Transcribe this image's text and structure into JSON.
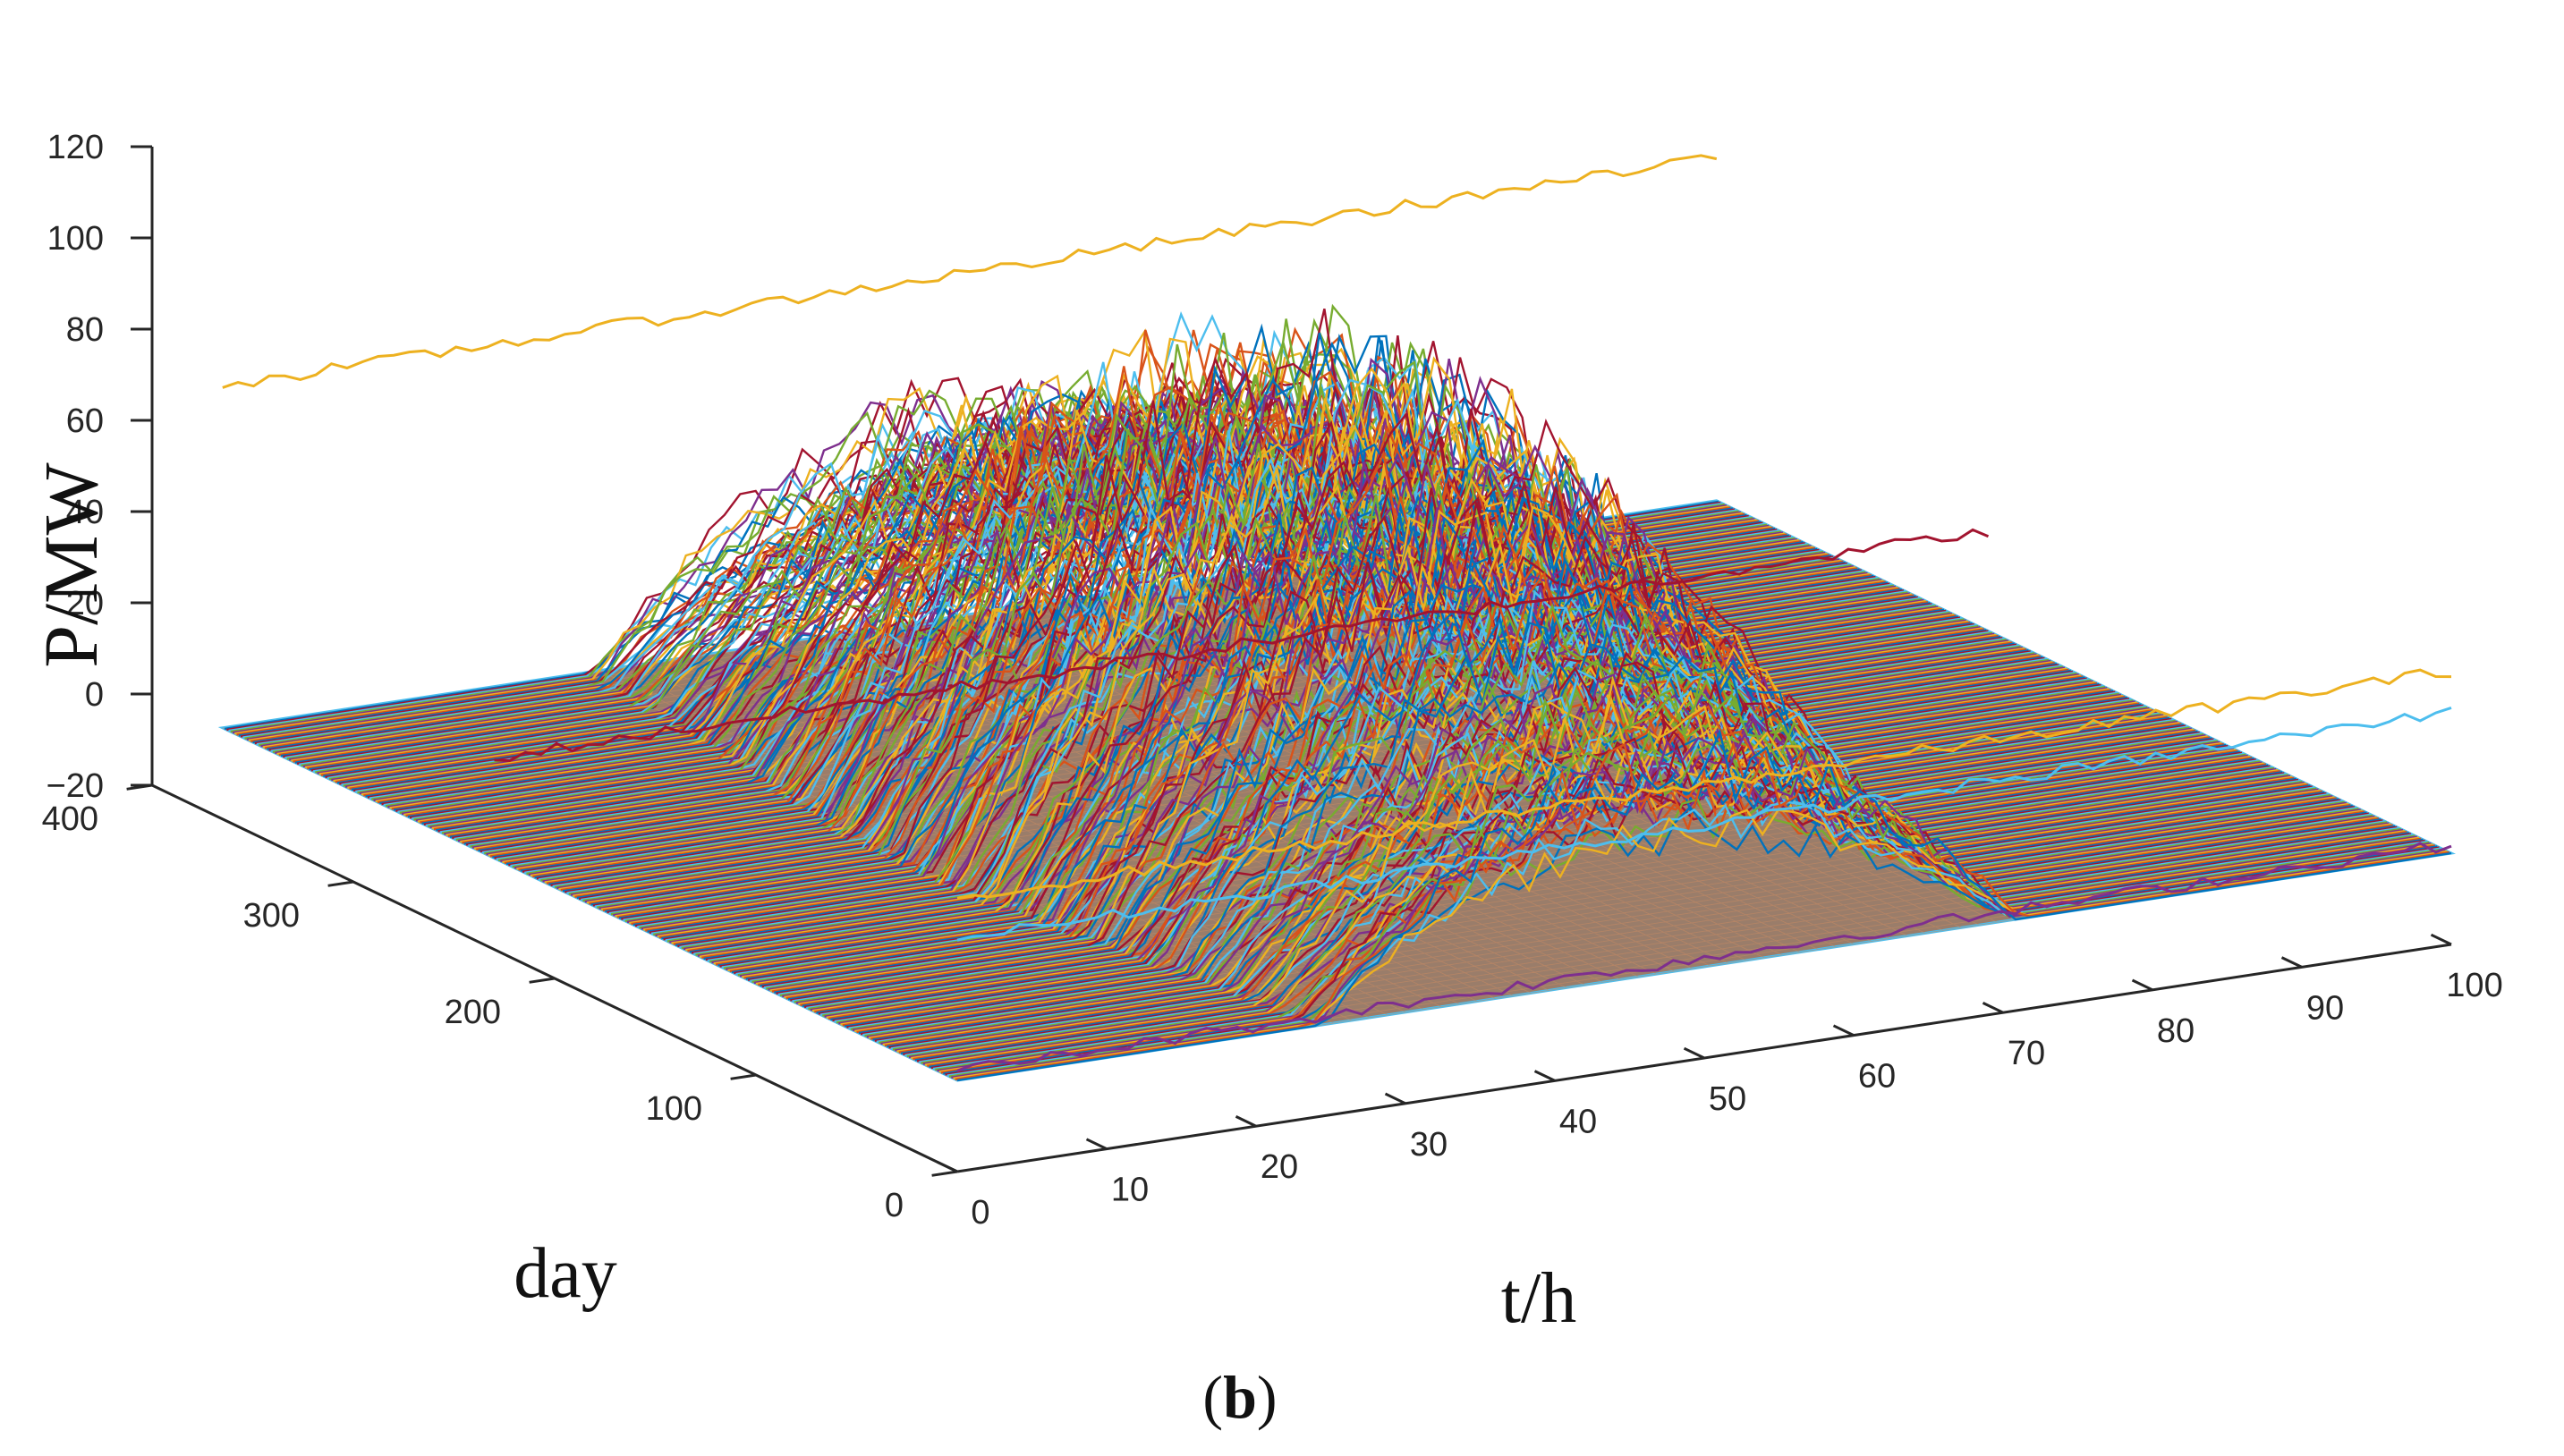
{
  "chart_data": {
    "type": "line",
    "subtype": "3d-line-waterfall",
    "title": "",
    "xlabel": "t/h",
    "ylabel": "day",
    "zlabel": "P/MW",
    "panel_label": {
      "open": "(",
      "letter": "b",
      "close": ")"
    },
    "xlim": [
      0,
      100
    ],
    "ylim": [
      0,
      400
    ],
    "zlim": [
      -20,
      120
    ],
    "x_ticks": [
      0,
      10,
      20,
      30,
      40,
      50,
      60,
      70,
      80,
      90,
      100
    ],
    "y_ticks": [
      0,
      100,
      200,
      300,
      400
    ],
    "z_ticks": [
      -20,
      0,
      20,
      40,
      60,
      80,
      100,
      120
    ],
    "x_tick_labels": [
      "0",
      "10",
      "20",
      "30",
      "40",
      "50",
      "60",
      "70",
      "80",
      "90",
      "100"
    ],
    "y_tick_labels": [
      "0",
      "100",
      "200",
      "300",
      "400"
    ],
    "z_tick_labels": [
      "−20",
      "0",
      "20",
      "40",
      "60",
      "80",
      "100",
      "120"
    ],
    "grid": false,
    "legend": "none",
    "colors": [
      "#0072BD",
      "#D95319",
      "#EDB120",
      "#7E2F8E",
      "#77AC30",
      "#4DBEEE",
      "#A2142F"
    ],
    "floor_color": "#9a7d6a",
    "series_summary": {
      "count": 365,
      "x_resolution_points": 96,
      "typical_profile": {
        "active_x_range": [
          20,
          75
        ],
        "peak_value": 85,
        "peak_x": 47
      }
    },
    "anomalous_series": [
      {
        "day": 365,
        "level": 75,
        "color": "#EDB120"
      },
      {
        "day": 0,
        "level": 40,
        "color": "#EDB120"
      },
      {
        "day": 0,
        "level": 31,
        "color": "#4DBEEE"
      },
      {
        "day": 230,
        "level": 22,
        "color": "#A2142F"
      },
      {
        "day": 0,
        "level": 2,
        "color": "#7E2F8E"
      }
    ]
  }
}
